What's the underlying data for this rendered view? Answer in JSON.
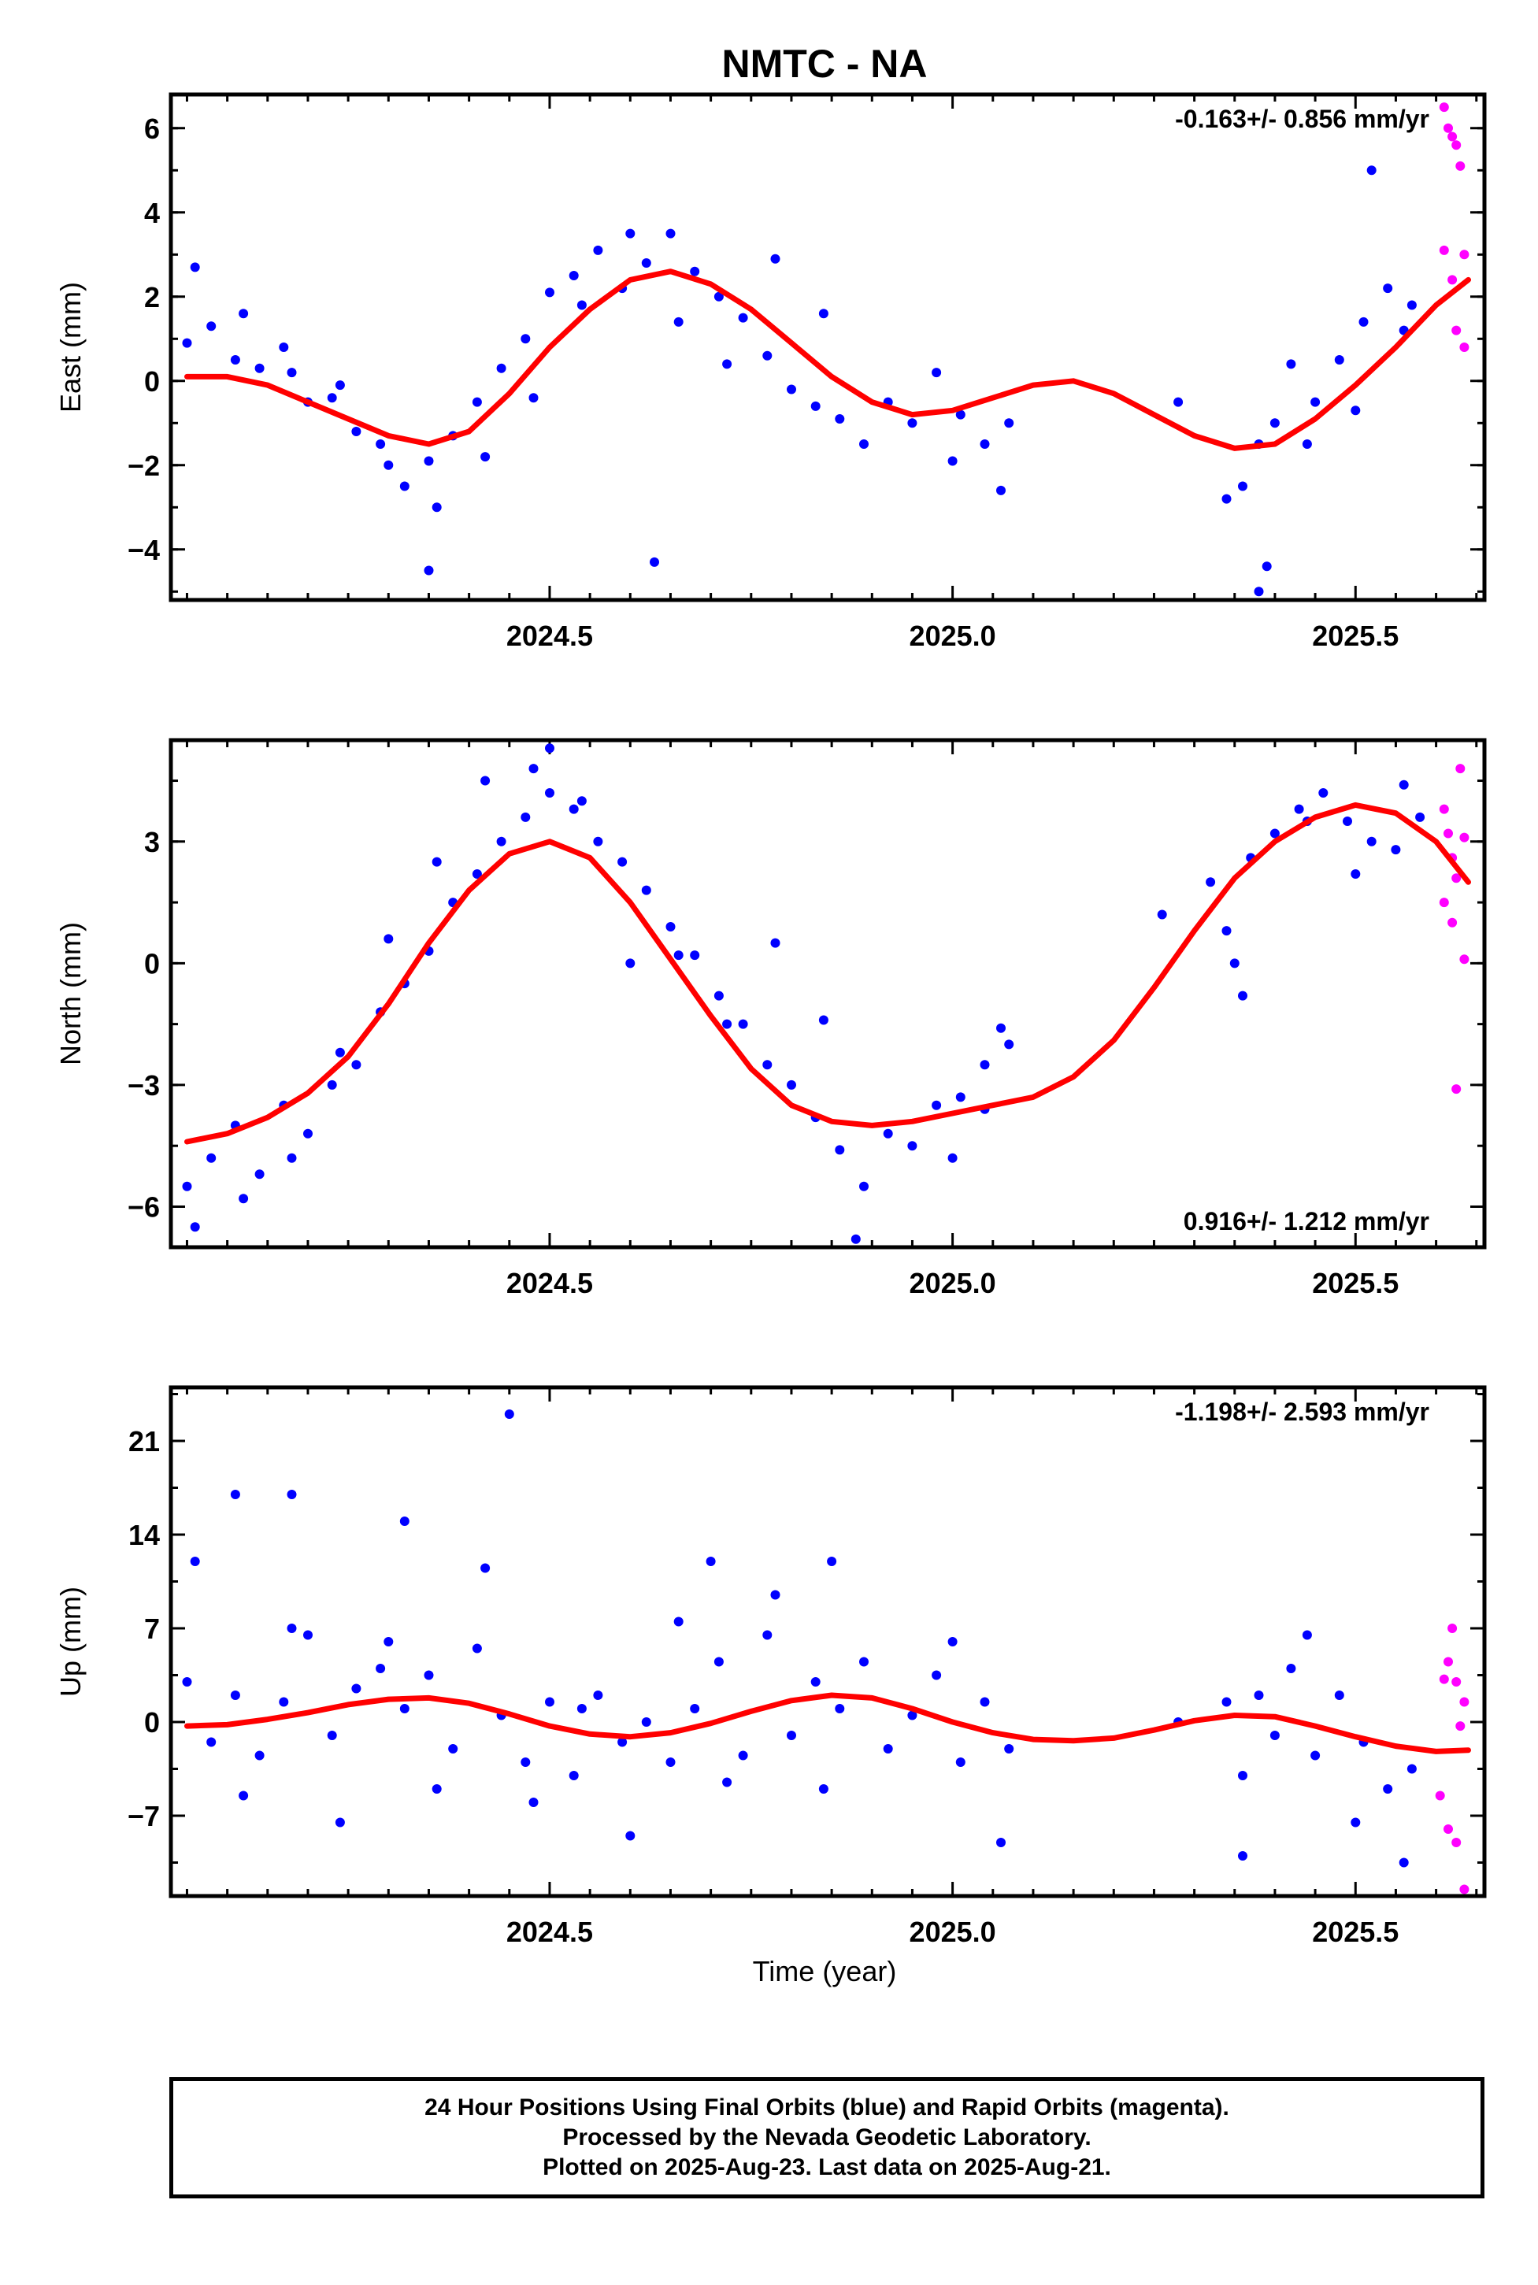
{
  "title": "NMTC - NA",
  "xlabel": "Time (year)",
  "colors": {
    "final": "#0000ff",
    "rapid": "#ff00ff",
    "model": "#ff0000",
    "frame": "#000000"
  },
  "footer": {
    "line1": "24 Hour Positions Using Final Orbits (blue) and Rapid Orbits (magenta).",
    "line2": "Processed by the Nevada Geodetic Laboratory.",
    "line3": "Plotted on 2025-Aug-23. Last data on 2025-Aug-21."
  },
  "chart_data": [
    {
      "type": "scatter",
      "ylabel": "East (mm)",
      "rate": "-0.163+/- 0.856 mm/yr",
      "rate_position": "top-right",
      "xlim": [
        2024.03,
        2025.66
      ],
      "ylim": [
        -5.2,
        6.8
      ],
      "xticks": [
        "2024.5",
        "2025.0",
        "2025.5"
      ],
      "yticks": [
        "6",
        "4",
        "2",
        "0",
        "-2",
        "-4"
      ],
      "series": [
        {
          "role": "final",
          "x": [
            2024.05,
            2024.08,
            2024.11,
            2024.14,
            2024.17,
            2024.2,
            2024.23,
            2024.26,
            2024.29,
            2024.32,
            2024.35,
            2024.38,
            2024.41,
            2024.44,
            2024.47,
            2024.5,
            2024.53,
            2024.56,
            2024.59,
            2024.62,
            2024.65,
            2024.68,
            2024.71,
            2024.74,
            2024.77,
            2024.8,
            2024.83,
            2024.86,
            2024.89,
            2024.92,
            2024.95,
            2024.98,
            2025.01,
            2025.04,
            2025.07,
            2025.28,
            2025.34,
            2025.36,
            2025.38,
            2025.4,
            2025.42,
            2025.45,
            2025.48,
            2025.51,
            2025.54,
            2025.57,
            2024.06,
            2024.12,
            2024.18,
            2024.24,
            2024.3,
            2024.36,
            2024.42,
            2024.48,
            2024.54,
            2024.6,
            2024.66,
            2024.72,
            2024.78,
            2024.84,
            2025.0,
            2025.06,
            2025.39,
            2025.44,
            2025.5,
            2025.56,
            2024.63,
            2024.35,
            2025.38,
            2025.52
          ],
          "y": [
            0.9,
            1.3,
            0.5,
            0.3,
            0.8,
            -0.5,
            -0.4,
            -1.2,
            -1.5,
            -2.5,
            -1.9,
            -1.3,
            -0.5,
            0.3,
            1.0,
            2.1,
            2.5,
            3.1,
            2.2,
            2.8,
            3.5,
            2.6,
            2.0,
            1.5,
            0.6,
            -0.2,
            -0.6,
            -0.9,
            -1.5,
            -0.5,
            -1.0,
            0.2,
            -0.8,
            -1.5,
            -1.0,
            -0.5,
            -2.8,
            -2.5,
            -1.5,
            -1.0,
            0.4,
            -0.5,
            0.5,
            1.4,
            2.2,
            1.8,
            2.7,
            1.6,
            0.2,
            -0.1,
            -2.0,
            -3.0,
            -1.8,
            -0.4,
            1.8,
            3.5,
            1.4,
            0.4,
            2.9,
            1.6,
            -1.9,
            -2.6,
            -4.4,
            -1.5,
            -0.7,
            1.2,
            -4.3,
            -4.5,
            -5.0,
            5.0
          ]
        },
        {
          "role": "rapid",
          "x": [
            2025.61,
            2025.615,
            2025.62,
            2025.625,
            2025.63,
            2025.635,
            2025.61,
            2025.62,
            2025.625,
            2025.635
          ],
          "y": [
            6.5,
            6.0,
            5.8,
            5.6,
            5.1,
            3.0,
            3.1,
            2.4,
            1.2,
            0.8
          ]
        },
        {
          "role": "model",
          "x": [
            2024.05,
            2024.1,
            2024.15,
            2024.2,
            2024.25,
            2024.3,
            2024.35,
            2024.4,
            2024.45,
            2024.5,
            2024.55,
            2024.6,
            2024.65,
            2024.7,
            2024.75,
            2024.8,
            2024.85,
            2024.9,
            2024.95,
            2025.0,
            2025.05,
            2025.1,
            2025.15,
            2025.2,
            2025.25,
            2025.3,
            2025.35,
            2025.4,
            2025.45,
            2025.5,
            2025.55,
            2025.6,
            2025.64
          ],
          "y": [
            0.1,
            0.1,
            -0.1,
            -0.5,
            -0.9,
            -1.3,
            -1.5,
            -1.2,
            -0.3,
            0.8,
            1.7,
            2.4,
            2.6,
            2.3,
            1.7,
            0.9,
            0.1,
            -0.5,
            -0.8,
            -0.7,
            -0.4,
            -0.1,
            0.0,
            -0.3,
            -0.8,
            -1.3,
            -1.6,
            -1.5,
            -0.9,
            -0.1,
            0.8,
            1.8,
            2.4
          ]
        }
      ]
    },
    {
      "type": "scatter",
      "ylabel": "North (mm)",
      "rate": "0.916+/- 1.212 mm/yr",
      "rate_position": "bottom-right",
      "xlim": [
        2024.03,
        2025.66
      ],
      "ylim": [
        -7.0,
        5.5
      ],
      "xticks": [
        "2024.5",
        "2025.0",
        "2025.5"
      ],
      "yticks": [
        "3",
        "0",
        "-3",
        "-6"
      ],
      "series": [
        {
          "role": "final",
          "x": [
            2024.05,
            2024.08,
            2024.11,
            2024.14,
            2024.17,
            2024.2,
            2024.23,
            2024.26,
            2024.29,
            2024.32,
            2024.35,
            2024.38,
            2024.41,
            2024.44,
            2024.47,
            2024.5,
            2024.53,
            2024.56,
            2024.59,
            2024.62,
            2024.65,
            2024.68,
            2024.71,
            2024.74,
            2024.77,
            2024.8,
            2024.83,
            2024.86,
            2024.89,
            2024.92,
            2024.95,
            2024.98,
            2025.01,
            2025.04,
            2025.07,
            2025.26,
            2025.32,
            2025.34,
            2025.37,
            2025.4,
            2025.43,
            2025.46,
            2025.49,
            2025.52,
            2025.55,
            2025.58,
            2024.06,
            2024.12,
            2024.18,
            2024.24,
            2024.3,
            2024.36,
            2024.42,
            2024.48,
            2024.54,
            2024.6,
            2024.66,
            2024.72,
            2024.78,
            2024.84,
            2025.0,
            2025.06,
            2025.36,
            2025.44,
            2025.5,
            2025.56,
            2024.5,
            2024.88,
            2025.04,
            2025.35
          ],
          "y": [
            -5.5,
            -4.8,
            -4.0,
            -5.2,
            -3.5,
            -4.2,
            -3.0,
            -2.5,
            -1.2,
            -0.5,
            0.3,
            1.5,
            2.2,
            3.0,
            3.6,
            4.2,
            3.8,
            3.0,
            2.5,
            1.8,
            0.9,
            0.2,
            -0.8,
            -1.5,
            -2.5,
            -3.0,
            -3.8,
            -4.6,
            -5.5,
            -4.2,
            -4.5,
            -3.5,
            -3.3,
            -2.5,
            -2.0,
            1.2,
            2.0,
            0.8,
            2.6,
            3.2,
            3.8,
            4.2,
            3.5,
            3.0,
            2.8,
            3.6,
            -6.5,
            -5.8,
            -4.8,
            -2.2,
            0.6,
            2.5,
            4.5,
            4.8,
            4.0,
            0.0,
            0.2,
            -1.5,
            0.5,
            -1.4,
            -4.8,
            -1.6,
            -0.8,
            3.5,
            2.2,
            4.4,
            5.3,
            -6.8,
            -3.6,
            0.0
          ],
          "_": null
        },
        {
          "role": "rapid",
          "x": [
            2025.61,
            2025.615,
            2025.62,
            2025.625,
            2025.63,
            2025.635,
            2025.61,
            2025.62,
            2025.625,
            2025.635
          ],
          "y": [
            3.8,
            3.2,
            2.6,
            2.1,
            4.8,
            3.1,
            1.5,
            1.0,
            -3.1,
            0.1
          ]
        },
        {
          "role": "model",
          "x": [
            2024.05,
            2024.1,
            2024.15,
            2024.2,
            2024.25,
            2024.3,
            2024.35,
            2024.4,
            2024.45,
            2024.5,
            2024.55,
            2024.6,
            2024.65,
            2024.7,
            2024.75,
            2024.8,
            2024.85,
            2024.9,
            2024.95,
            2025.0,
            2025.05,
            2025.1,
            2025.15,
            2025.2,
            2025.25,
            2025.3,
            2025.35,
            2025.4,
            2025.45,
            2025.5,
            2025.55,
            2025.6,
            2025.64
          ],
          "y": [
            -4.4,
            -4.2,
            -3.8,
            -3.2,
            -2.3,
            -1.0,
            0.5,
            1.8,
            2.7,
            3.0,
            2.6,
            1.5,
            0.1,
            -1.3,
            -2.6,
            -3.5,
            -3.9,
            -4.0,
            -3.9,
            -3.7,
            -3.5,
            -3.3,
            -2.8,
            -1.9,
            -0.6,
            0.8,
            2.1,
            3.0,
            3.6,
            3.9,
            3.7,
            3.0,
            2.0
          ]
        }
      ]
    },
    {
      "type": "scatter",
      "ylabel": "Up (mm)",
      "rate": "-1.198+/- 2.593 mm/yr",
      "rate_position": "top-right",
      "xlim": [
        2024.03,
        2025.66
      ],
      "ylim": [
        -13.0,
        25.0
      ],
      "xticks": [
        "2024.5",
        "2025.0",
        "2025.5"
      ],
      "yticks": [
        "21",
        "14",
        "7",
        "0",
        "-7"
      ],
      "series": [
        {
          "role": "final",
          "x": [
            2024.05,
            2024.08,
            2024.11,
            2024.14,
            2024.17,
            2024.2,
            2024.23,
            2024.26,
            2024.29,
            2024.32,
            2024.35,
            2024.38,
            2024.41,
            2024.44,
            2024.47,
            2024.5,
            2024.53,
            2024.56,
            2024.59,
            2024.62,
            2024.65,
            2024.68,
            2024.71,
            2024.74,
            2024.77,
            2024.8,
            2024.83,
            2024.86,
            2024.89,
            2024.92,
            2024.95,
            2024.98,
            2025.01,
            2025.04,
            2025.07,
            2025.28,
            2025.34,
            2025.36,
            2025.38,
            2025.4,
            2025.42,
            2025.45,
            2025.48,
            2025.51,
            2025.54,
            2025.57,
            2024.06,
            2024.12,
            2024.18,
            2024.24,
            2024.3,
            2024.36,
            2024.42,
            2024.48,
            2024.54,
            2024.6,
            2024.66,
            2024.72,
            2024.78,
            2024.84,
            2025.0,
            2025.06,
            2025.36,
            2025.44,
            2025.5,
            2025.56,
            2024.45,
            2024.11,
            2024.18,
            2024.32,
            2024.7,
            2024.85
          ],
          "y": [
            3.0,
            -1.5,
            2.0,
            -2.5,
            1.5,
            6.5,
            -1.0,
            2.5,
            4.0,
            1.0,
            3.5,
            -2.0,
            5.5,
            0.5,
            -3.0,
            1.5,
            -4.0,
            2.0,
            -1.5,
            0.0,
            -3.0,
            1.0,
            4.5,
            -2.5,
            6.5,
            -1.0,
            3.0,
            1.0,
            4.5,
            -2.0,
            0.5,
            3.5,
            -3.0,
            1.5,
            -2.0,
            0.0,
            1.5,
            -4.0,
            2.0,
            -1.0,
            4.0,
            -2.5,
            2.0,
            -1.5,
            -5.0,
            -3.5,
            12.0,
            -5.5,
            7.0,
            -7.5,
            6.0,
            -5.0,
            11.5,
            -6.0,
            1.0,
            -8.5,
            7.5,
            -4.5,
            9.5,
            -5.0,
            6.0,
            -9.0,
            -10.0,
            6.5,
            -7.5,
            -10.5,
            23.0,
            17.0,
            17.0,
            15.0,
            12.0,
            12.0
          ]
        },
        {
          "role": "rapid",
          "x": [
            2025.61,
            2025.615,
            2025.62,
            2025.625,
            2025.63,
            2025.635,
            2025.605,
            2025.615,
            2025.625,
            2025.635
          ],
          "y": [
            3.2,
            4.5,
            7.0,
            3.0,
            -0.3,
            1.5,
            -5.5,
            -8.0,
            -9.0,
            -12.5
          ]
        },
        {
          "role": "model",
          "x": [
            2024.05,
            2024.1,
            2024.15,
            2024.2,
            2024.25,
            2024.3,
            2024.35,
            2024.4,
            2024.45,
            2024.5,
            2024.55,
            2024.6,
            2024.65,
            2024.7,
            2024.75,
            2024.8,
            2024.85,
            2024.9,
            2024.95,
            2025.0,
            2025.05,
            2025.1,
            2025.15,
            2025.2,
            2025.25,
            2025.3,
            2025.35,
            2025.4,
            2025.45,
            2025.5,
            2025.55,
            2025.6,
            2025.64
          ],
          "y": [
            -0.3,
            -0.2,
            0.2,
            0.7,
            1.3,
            1.7,
            1.8,
            1.4,
            0.6,
            -0.3,
            -0.9,
            -1.1,
            -0.8,
            -0.1,
            0.8,
            1.6,
            2.0,
            1.8,
            1.0,
            0.0,
            -0.8,
            -1.3,
            -1.4,
            -1.2,
            -0.6,
            0.1,
            0.5,
            0.4,
            -0.3,
            -1.1,
            -1.8,
            -2.2,
            -2.1
          ]
        }
      ]
    }
  ]
}
